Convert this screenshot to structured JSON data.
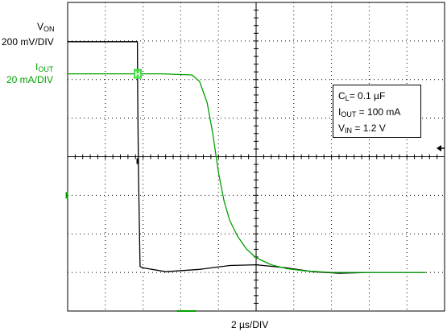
{
  "chart_data": {
    "type": "line",
    "xlabel": "2 µs/DIV",
    "grid": true,
    "channels": [
      {
        "symbol": "V",
        "subscript": "ON",
        "scale": "200 mV/DIV",
        "color": "#000000"
      },
      {
        "symbol": "I",
        "subscript": "OUT",
        "scale": "20 mA/DIV",
        "color": "#00a000"
      }
    ],
    "series": [
      {
        "name": "VON",
        "color": "#000000",
        "x_div": [
          0,
          1.85,
          1.86,
          1.88,
          1.92,
          2.0,
          2.6,
          3.5,
          4.3,
          5.0,
          5.8,
          6.5,
          7.2,
          8.0,
          9.5
        ],
        "y_div": [
          6.98,
          6.98,
          5.5,
          3.5,
          1.15,
          1.12,
          1.02,
          1.08,
          1.18,
          1.2,
          1.12,
          1.02,
          0.98,
          1.0,
          1.0
        ]
      },
      {
        "name": "IOUT",
        "color": "#00a000",
        "x_div": [
          0,
          2.5,
          3.3,
          3.5,
          3.7,
          3.85,
          4.0,
          4.15,
          4.3,
          4.5,
          4.75,
          5.0,
          5.4,
          5.8,
          6.3,
          7.0,
          8.0,
          9.5
        ],
        "y_div": [
          6.15,
          6.15,
          6.12,
          5.95,
          5.4,
          4.6,
          3.6,
          2.85,
          2.35,
          1.95,
          1.6,
          1.38,
          1.2,
          1.1,
          1.04,
          1.0,
          1.0,
          1.0
        ]
      }
    ],
    "annotations": {
      "cl_sym": "C",
      "cl_sub": "L",
      "cl_val": "= 0.1 µF",
      "iout_sym": "I",
      "iout_sub": "OUT",
      "iout_val": " = 100 mA",
      "vin_sym": "V",
      "vin_sub": "IN",
      "vin_val": " = 1.2 V"
    },
    "trigger_marker": "H"
  }
}
